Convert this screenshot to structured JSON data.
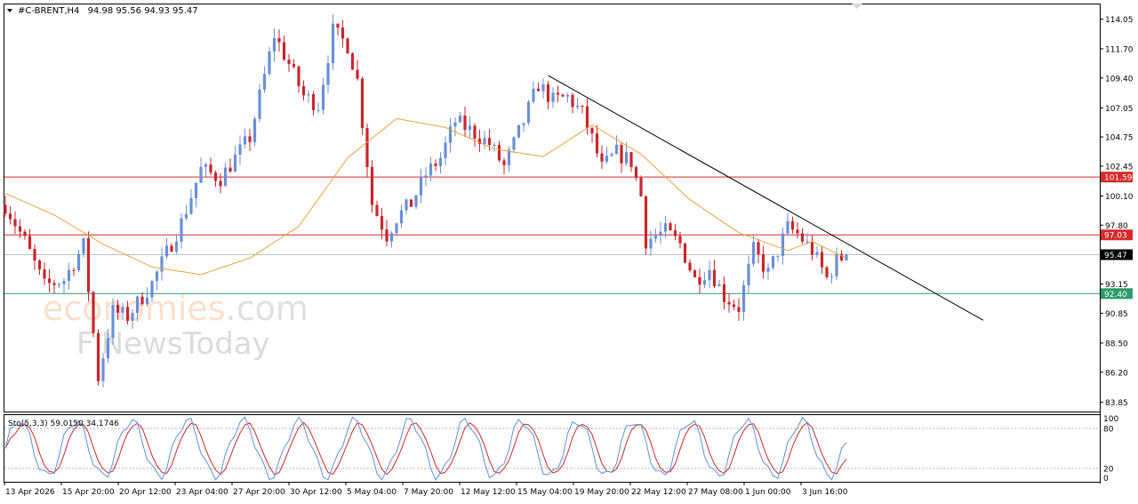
{
  "header": {
    "symbol": "#C-BRENT,H4",
    "ohlc": "94.98 95.56 94.93 95.47"
  },
  "watermark": {
    "line1_a": "economies",
    "line1_b": ".com",
    "line2_a": "F",
    "line2_b": "NewsToday"
  },
  "colors": {
    "bull": "#6b8fd6",
    "bear": "#c8262c",
    "ma": "#e8a33a",
    "resistance": "#d42a2a",
    "support": "#2f9a6a",
    "trendline": "#000000",
    "stoch_main": "#5f8fd9",
    "stoch_signal": "#c62a2a"
  },
  "chart_data": {
    "type": "candlestick",
    "symbol": "#C-BRENT",
    "timeframe": "H4",
    "ylim": [
      83.1,
      115.2
    ],
    "y_ticks": [
      "114.05",
      "111.70",
      "109.40",
      "107.05",
      "104.75",
      "102.45",
      "100.10",
      "97.80",
      "95.47",
      "93.15",
      "90.85",
      "88.50",
      "86.20",
      "83.85"
    ],
    "x_ticks": [
      "13 Apr 2026",
      "15 Apr 20:00",
      "20 Apr 12:00",
      "23 Apr 04:00",
      "27 Apr 20:00",
      "30 Apr 12:00",
      "5 May 04:00",
      "7 May 20:00",
      "12 May 12:00",
      "15 May 04:00",
      "19 May 20:00",
      "22 May 12:00",
      "27 May 08:00",
      "1 Jun 00:00",
      "3 Jun 16:00"
    ],
    "horizontal_levels": [
      {
        "label": "101.59",
        "value": 101.59,
        "role": "resistance"
      },
      {
        "label": "97.03",
        "value": 97.03,
        "role": "resistance"
      },
      {
        "label": "92.40",
        "value": 92.4,
        "role": "support"
      }
    ],
    "current_price": {
      "label": "95.47",
      "value": 95.47
    },
    "trendline": {
      "start_index": 111,
      "start_value": 109.6,
      "end_index": 200,
      "end_value": 90.3
    },
    "moving_average_anchors": [
      [
        0,
        100.3
      ],
      [
        10,
        98.6
      ],
      [
        20,
        96.3
      ],
      [
        30,
        94.5
      ],
      [
        40,
        93.9
      ],
      [
        50,
        95.2
      ],
      [
        60,
        97.7
      ],
      [
        70,
        103.1
      ],
      [
        80,
        106.2
      ],
      [
        90,
        105.5
      ],
      [
        100,
        103.8
      ],
      [
        110,
        103.2
      ],
      [
        120,
        105.7
      ],
      [
        130,
        103.4
      ],
      [
        140,
        99.8
      ],
      [
        150,
        97.2
      ],
      [
        160,
        95.8
      ],
      [
        165,
        96.5
      ],
      [
        172,
        95.2
      ]
    ],
    "price_anchors": [
      [
        0,
        99.4
      ],
      [
        4,
        96.5
      ],
      [
        8,
        93.0
      ],
      [
        12,
        93.5
      ],
      [
        16,
        96.2
      ],
      [
        19,
        85.8
      ],
      [
        22,
        91.0
      ],
      [
        25,
        90.6
      ],
      [
        30,
        93.2
      ],
      [
        36,
        98.0
      ],
      [
        40,
        102.2
      ],
      [
        44,
        101.5
      ],
      [
        50,
        104.7
      ],
      [
        55,
        112.8
      ],
      [
        58,
        110.5
      ],
      [
        61,
        108.0
      ],
      [
        64,
        107.3
      ],
      [
        67,
        113.1
      ],
      [
        70,
        112.0
      ],
      [
        72,
        109.2
      ],
      [
        75,
        99.5
      ],
      [
        78,
        97.0
      ],
      [
        80,
        98.4
      ],
      [
        83,
        99.5
      ],
      [
        86,
        101.8
      ],
      [
        89,
        103.1
      ],
      [
        92,
        106.0
      ],
      [
        95,
        105.3
      ],
      [
        99,
        104.2
      ],
      [
        102,
        102.4
      ],
      [
        106,
        106.0
      ],
      [
        109,
        108.9
      ],
      [
        112,
        107.6
      ],
      [
        115,
        107.9
      ],
      [
        118,
        106.6
      ],
      [
        120,
        104.6
      ],
      [
        122,
        102.3
      ],
      [
        125,
        103.5
      ],
      [
        128,
        102.8
      ],
      [
        130,
        100.1
      ],
      [
        131,
        96.6
      ],
      [
        135,
        97.3
      ],
      [
        138,
        96.3
      ],
      [
        141,
        93.5
      ],
      [
        144,
        94.4
      ],
      [
        147,
        92.2
      ],
      [
        150,
        91.3
      ],
      [
        153,
        95.8
      ],
      [
        156,
        94.0
      ],
      [
        160,
        97.6
      ],
      [
        162,
        97.1
      ],
      [
        165,
        95.8
      ],
      [
        168,
        93.6
      ],
      [
        170,
        95.0
      ],
      [
        172,
        95.47
      ]
    ],
    "stochastic": {
      "label": "Sto(5,3,3) 59.0150 34.1746",
      "main": 59.015,
      "signal": 34.1746,
      "ylim": [
        0,
        100
      ],
      "y_ticks": [
        "100",
        "80",
        "20",
        "0"
      ],
      "levels": [
        80,
        20
      ]
    }
  }
}
